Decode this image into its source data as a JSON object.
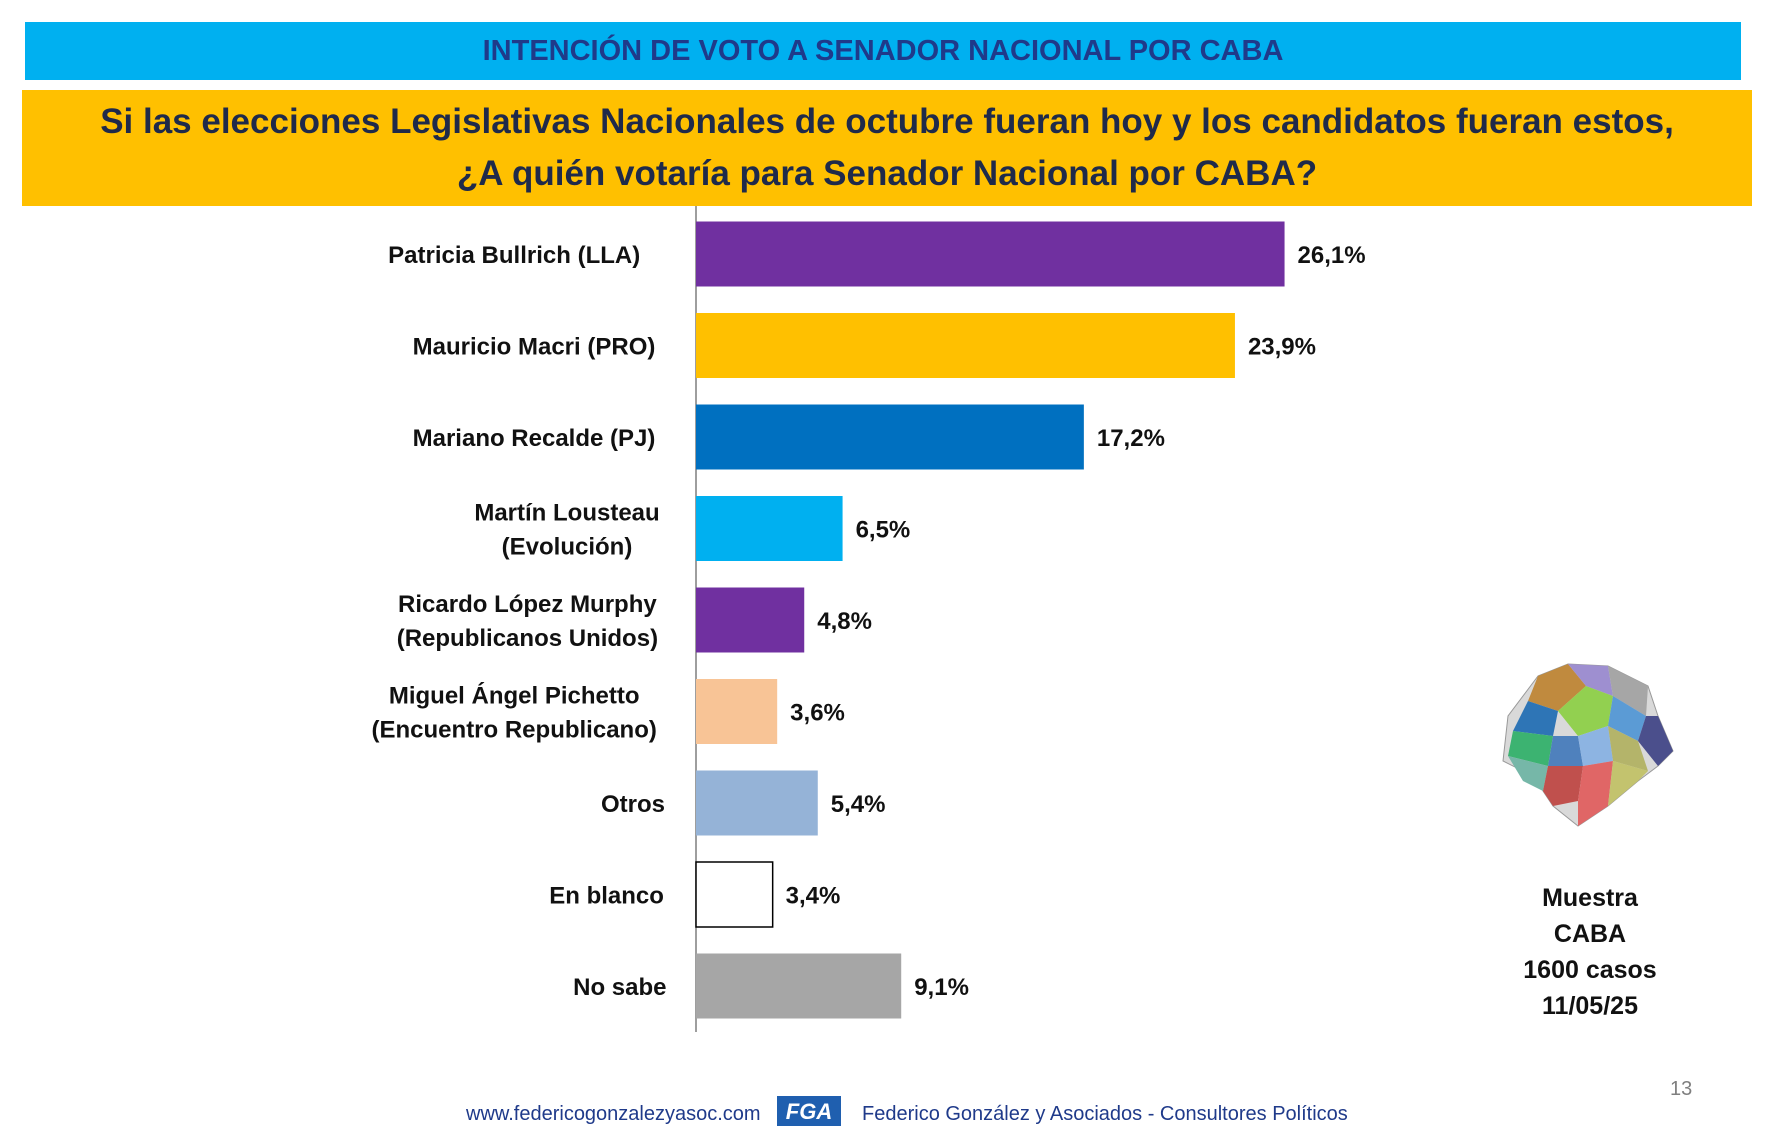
{
  "header": {
    "title": "INTENCIÓN DE VOTO A SENADOR NACIONAL POR CABA",
    "question_line1": "Si las elecciones Legislativas Nacionales de octubre fueran hoy y los candidatos fueran estos,",
    "question_line2": "¿A quién votaría para Senador Nacional por CABA?"
  },
  "chart_data": {
    "type": "bar",
    "orientation": "horizontal",
    "categories": [
      [
        "Patricia Bullrich (LLA)"
      ],
      [
        "Mauricio Macri (PRO)"
      ],
      [
        "Mariano Recalde (PJ)"
      ],
      [
        "Martín Lousteau",
        "(Evolución)"
      ],
      [
        "Ricardo López Murphy",
        "(Republicanos Unidos)"
      ],
      [
        "Miguel Ángel Pichetto",
        "(Encuentro Republicano)"
      ],
      [
        "Otros"
      ],
      [
        "En blanco"
      ],
      [
        "No sabe"
      ]
    ],
    "values": [
      26.1,
      23.9,
      17.2,
      6.5,
      4.8,
      3.6,
      5.4,
      3.4,
      9.1
    ],
    "value_labels": [
      "26,1%",
      "23,9%",
      "17,2%",
      "6,5%",
      "4,8%",
      "3,6%",
      "5,4%",
      "3,4%",
      "9,1%"
    ],
    "colors": [
      "#7030A0",
      "#FFC000",
      "#0070C0",
      "#00B0F0",
      "#7030A0",
      "#F8C496",
      "#95B3D7",
      "#FFFFFF",
      "#A6A6A6"
    ],
    "xlim": [
      0,
      30
    ]
  },
  "sample": {
    "line1": "Muestra",
    "line2": "CABA",
    "line3": "1600 casos",
    "line4": "11/05/25"
  },
  "footer": {
    "url": "www.federicogonzalezyasoc.com",
    "logo_text": "FGA",
    "company": "Federico González y Asociados - Consultores Políticos",
    "page_number": "13"
  },
  "icons": {
    "map": "caba-map-icon",
    "logo": "fga-logo-icon"
  }
}
